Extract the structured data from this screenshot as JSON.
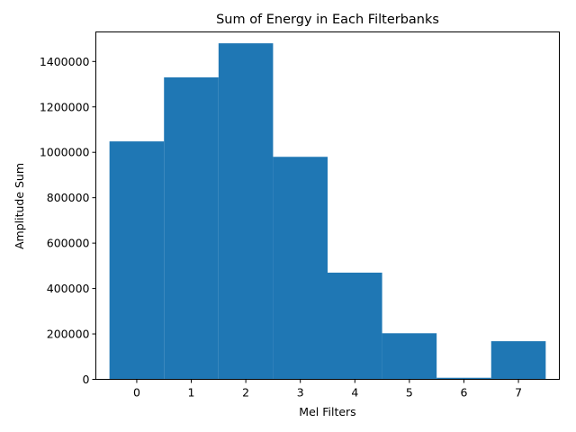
{
  "chart_data": {
    "type": "bar",
    "title": "Sum of Energy in Each Filterbanks",
    "xlabel": "Mel Filters",
    "ylabel": "Amplitude Sum",
    "categories": [
      "0",
      "1",
      "2",
      "3",
      "4",
      "5",
      "6",
      "7"
    ],
    "values": [
      1048000,
      1330000,
      1480000,
      980000,
      470000,
      203000,
      7000,
      168000
    ],
    "bar_color": "#1f77b4",
    "xlim": [
      -0.75,
      7.75
    ],
    "ylim": [
      0,
      1530000
    ],
    "yticks": [
      0,
      200000,
      400000,
      600000,
      800000,
      1000000,
      1200000,
      1400000
    ],
    "ytick_labels": [
      "0",
      "200000",
      "400000",
      "600000",
      "800000",
      "1000000",
      "1200000",
      "1400000"
    ],
    "grid": false,
    "legend": "none"
  }
}
